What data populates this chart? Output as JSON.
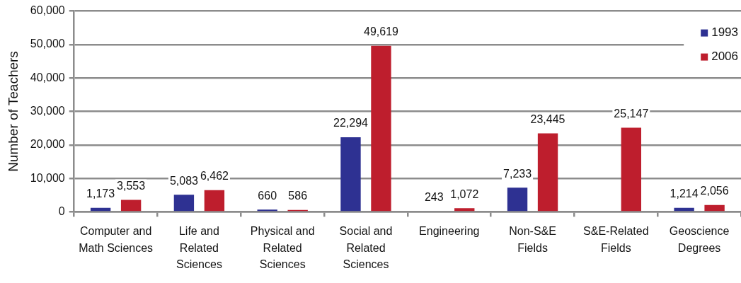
{
  "chart_data": {
    "type": "bar",
    "ylabel": "Number of Teachers",
    "categories": [
      "Computer and Math Sciences",
      "Life and Related Sciences",
      "Physical and Related Sciences",
      "Social and Related Sciences",
      "Engineering",
      "Non-S&E Fields",
      "S&E-Related Fields",
      "Geoscience Degrees"
    ],
    "series": [
      {
        "name": "1993",
        "color": "#2e3192",
        "values": [
          1173,
          5083,
          660,
          22294,
          243,
          7233,
          null,
          1214
        ],
        "value_labels": [
          "1,173",
          "5,083",
          "660",
          "22,294",
          "243",
          "7,233",
          null,
          "1,214"
        ]
      },
      {
        "name": "2006",
        "color": "#be1e2d",
        "values": [
          3553,
          6462,
          586,
          49619,
          1072,
          23445,
          25147,
          2056
        ],
        "value_labels": [
          "3,553",
          "6,462",
          "586",
          "49,619",
          "1,072",
          "23,445",
          "25,147",
          "2,056"
        ]
      }
    ],
    "ylim": [
      0,
      60000
    ],
    "yticks": [
      0,
      {
        "value": 10000,
        "label": "10,000"
      },
      {
        "value": 20000,
        "label": "20,000"
      },
      {
        "value": 30000,
        "label": "30,000"
      },
      {
        "value": 40000,
        "label": "40,000"
      },
      {
        "value": 50000,
        "label": "50,000"
      },
      {
        "value": 60000,
        "label": "60,000"
      }
    ],
    "grid": "y",
    "legend": "top right"
  }
}
